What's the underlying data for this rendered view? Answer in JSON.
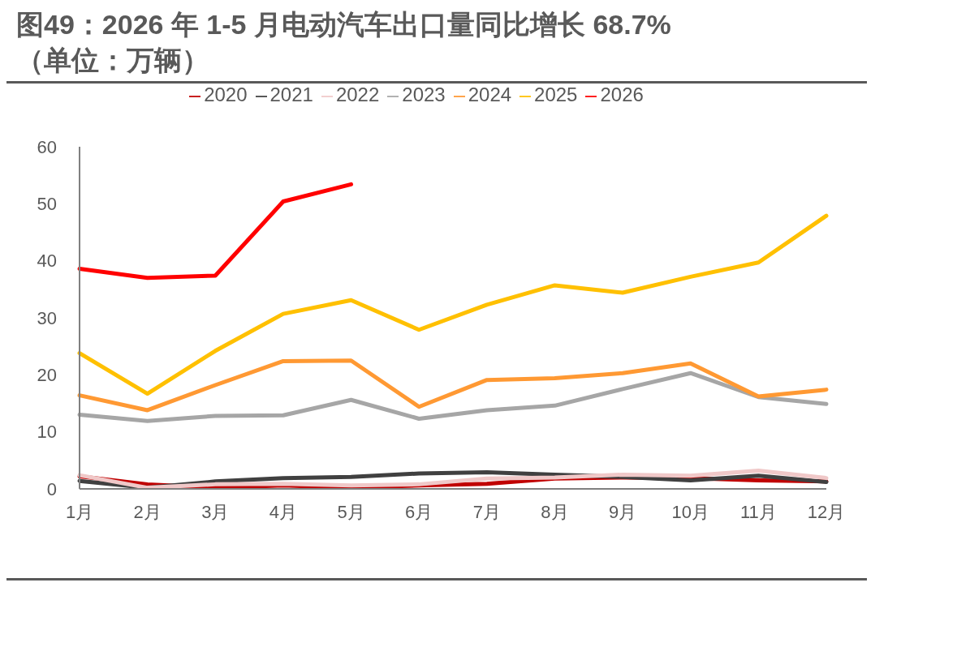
{
  "chart_data": {
    "type": "line",
    "title": "图49：2026 年 1-5 月电动汽车出口量同比增长 68.7%",
    "subtitle": "（单位：万辆）",
    "categories": [
      "1月",
      "2月",
      "3月",
      "4月",
      "5月",
      "6月",
      "7月",
      "8月",
      "9月",
      "10月",
      "11月",
      "12月"
    ],
    "series": [
      {
        "name": "2020",
        "color": "#c00000",
        "values": [
          2.2,
          0.8,
          0.2,
          0.6,
          0.2,
          0.6,
          0.9,
          1.8,
          2.0,
          1.9,
          1.5,
          1.3
        ]
      },
      {
        "name": "2021",
        "color": "#404040",
        "values": [
          1.4,
          0.2,
          1.3,
          1.9,
          2.1,
          2.7,
          2.9,
          2.5,
          2.1,
          1.5,
          2.3,
          1.2
        ]
      },
      {
        "name": "2022",
        "color": "#f0c8c8",
        "values": [
          2.4,
          0.2,
          0.8,
          0.9,
          0.6,
          0.8,
          1.8,
          2.0,
          2.5,
          2.3,
          3.2,
          1.9
        ]
      },
      {
        "name": "2023",
        "color": "#a6a6a6",
        "values": [
          13.0,
          11.9,
          12.8,
          12.9,
          15.6,
          12.3,
          13.8,
          14.6,
          17.5,
          20.3,
          16.1,
          14.9
        ]
      },
      {
        "name": "2024",
        "color": "#ff9933",
        "values": [
          16.4,
          13.8,
          18.2,
          22.4,
          22.5,
          14.4,
          19.1,
          19.4,
          20.3,
          22.0,
          16.2,
          17.4
        ]
      },
      {
        "name": "2025",
        "color": "#ffc000",
        "values": [
          23.8,
          16.7,
          24.2,
          30.7,
          33.1,
          27.9,
          32.3,
          35.7,
          34.4,
          37.2,
          39.7,
          47.9
        ]
      },
      {
        "name": "2026",
        "color": "#ff0000",
        "values": [
          38.6,
          37.0,
          37.4,
          50.4,
          53.4,
          null,
          null,
          null,
          null,
          null,
          null,
          null
        ]
      }
    ],
    "ylim": [
      0,
      60
    ],
    "yticks": [
      0,
      10,
      20,
      30,
      40,
      50,
      60
    ],
    "grid": false,
    "legend": "top",
    "marker": "none",
    "line_style": "solid"
  }
}
